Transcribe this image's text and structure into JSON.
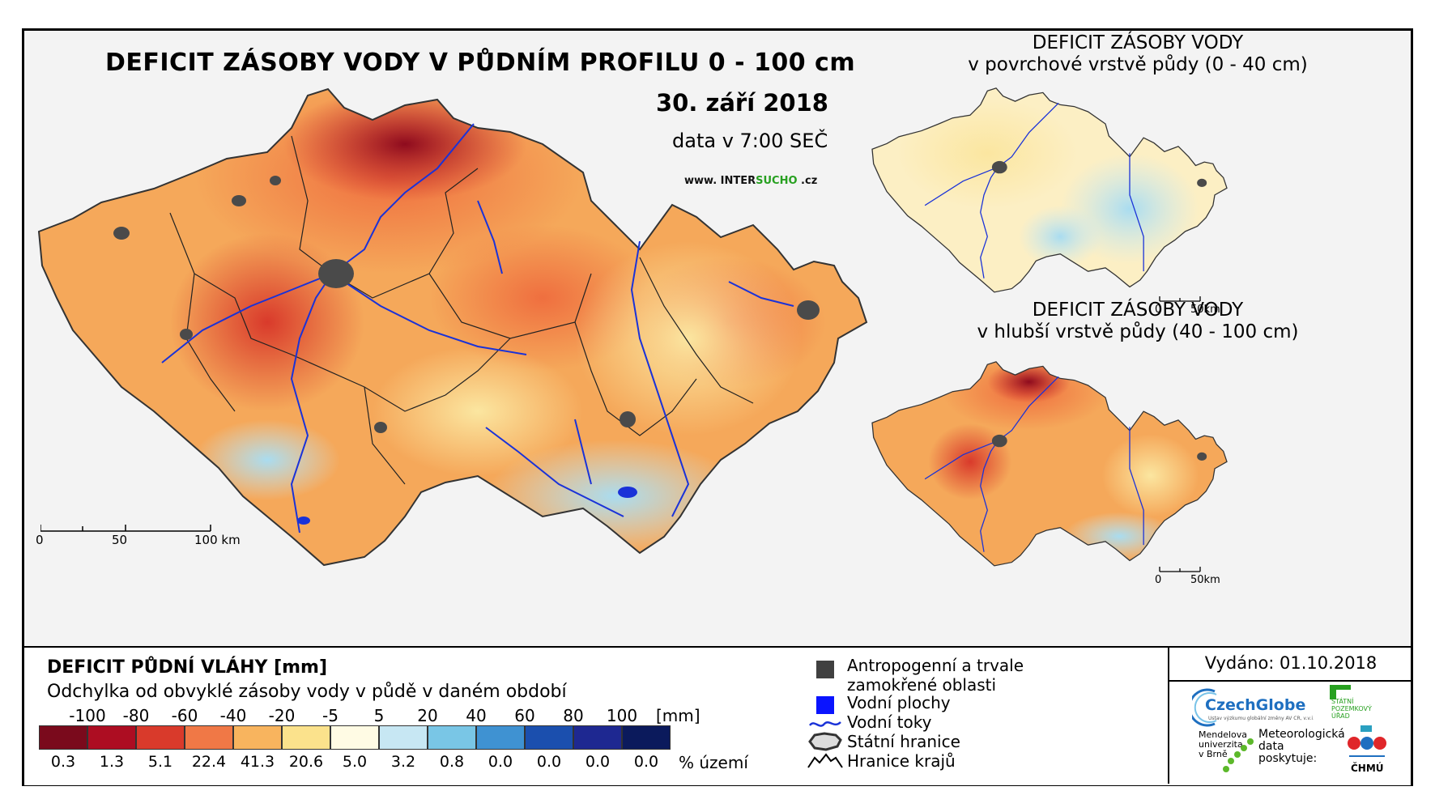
{
  "main": {
    "title": "DEFICIT ZÁSOBY VODY V PŮDNÍM PROFILU 0 - 100 cm",
    "date": "30. září 2018",
    "time_note": "data v 7:00 SEČ",
    "website_prefix": "www. INTER",
    "website_green": "SUCHO",
    "website_suffix": " .cz",
    "scale": {
      "labels": [
        "0",
        "50",
        "100 km"
      ]
    }
  },
  "map_top": {
    "title_line1": "DEFICIT ZÁSOBY VODY",
    "title_line2": "v povrchové vrstvě půdy (0 - 40 cm)",
    "scale": {
      "labels": [
        "0",
        "50km"
      ]
    }
  },
  "map_bottom": {
    "title_line1": "DEFICIT ZÁSOBY VODY",
    "title_line2": "v hlubší vrstvě půdy (40 - 100 cm)",
    "scale": {
      "labels": [
        "0",
        "50km"
      ]
    }
  },
  "legend": {
    "title": "DEFICIT PŮDNÍ VLÁHY [mm]",
    "subtitle": "Odchylka od obvyklé zásoby vody v půdě v daném období",
    "unit": "[mm]",
    "pct_unit": "% území",
    "class_labels": [
      "-100",
      "-80",
      "-60",
      "-40",
      "-20",
      "-5",
      "5",
      "20",
      "40",
      "60",
      "80",
      "100"
    ],
    "colors": [
      "#7a0a1c",
      "#ad0d22",
      "#d93a2b",
      "#f07846",
      "#f8b45e",
      "#fbe28c",
      "#fffbe4",
      "#c7e7f3",
      "#79c6e6",
      "#3f92d2",
      "#1b4fae",
      "#1e2891",
      "#0b1a5c"
    ],
    "percentages": [
      "0.3",
      "1.3",
      "5.1",
      "22.4",
      "41.3",
      "20.6",
      "5.0",
      "3.2",
      "0.8",
      "0.0",
      "0.0",
      "0.0",
      "0.0"
    ]
  },
  "key": {
    "items": [
      {
        "line1": "Antropogenní a trvale",
        "line2": "zamokřené oblasti",
        "icon": "dark-square-icon",
        "color": "#404040"
      },
      {
        "line1": "Vodní plochy",
        "icon": "blue-square-icon",
        "color": "#0a14ff"
      },
      {
        "line1": "Vodní toky",
        "icon": "river-line-icon",
        "color": "#1a32d8"
      },
      {
        "line1": "Státní hranice",
        "icon": "state-border-icon"
      },
      {
        "line1": "Hranice krajů",
        "icon": "region-border-icon"
      }
    ]
  },
  "credits": {
    "issued": "Vydáno: 01.10.2018",
    "czechglobe": "CzechGlobe",
    "czechglobe_small": "Ústav výzkumu globální změny AV ČR, v.v.i.",
    "spu_line1": "STÁTNÍ",
    "spu_line2": "POZEMKOVÝ",
    "spu_line3": "ÚŘAD",
    "mendel_line1": "Mendelova",
    "mendel_line2": "univerzita",
    "mendel_line3": "v Brně",
    "met_line1": "Meteorologická",
    "met_line2": "data",
    "met_line3": "poskytuje:",
    "chmu": "ČHMÚ"
  }
}
